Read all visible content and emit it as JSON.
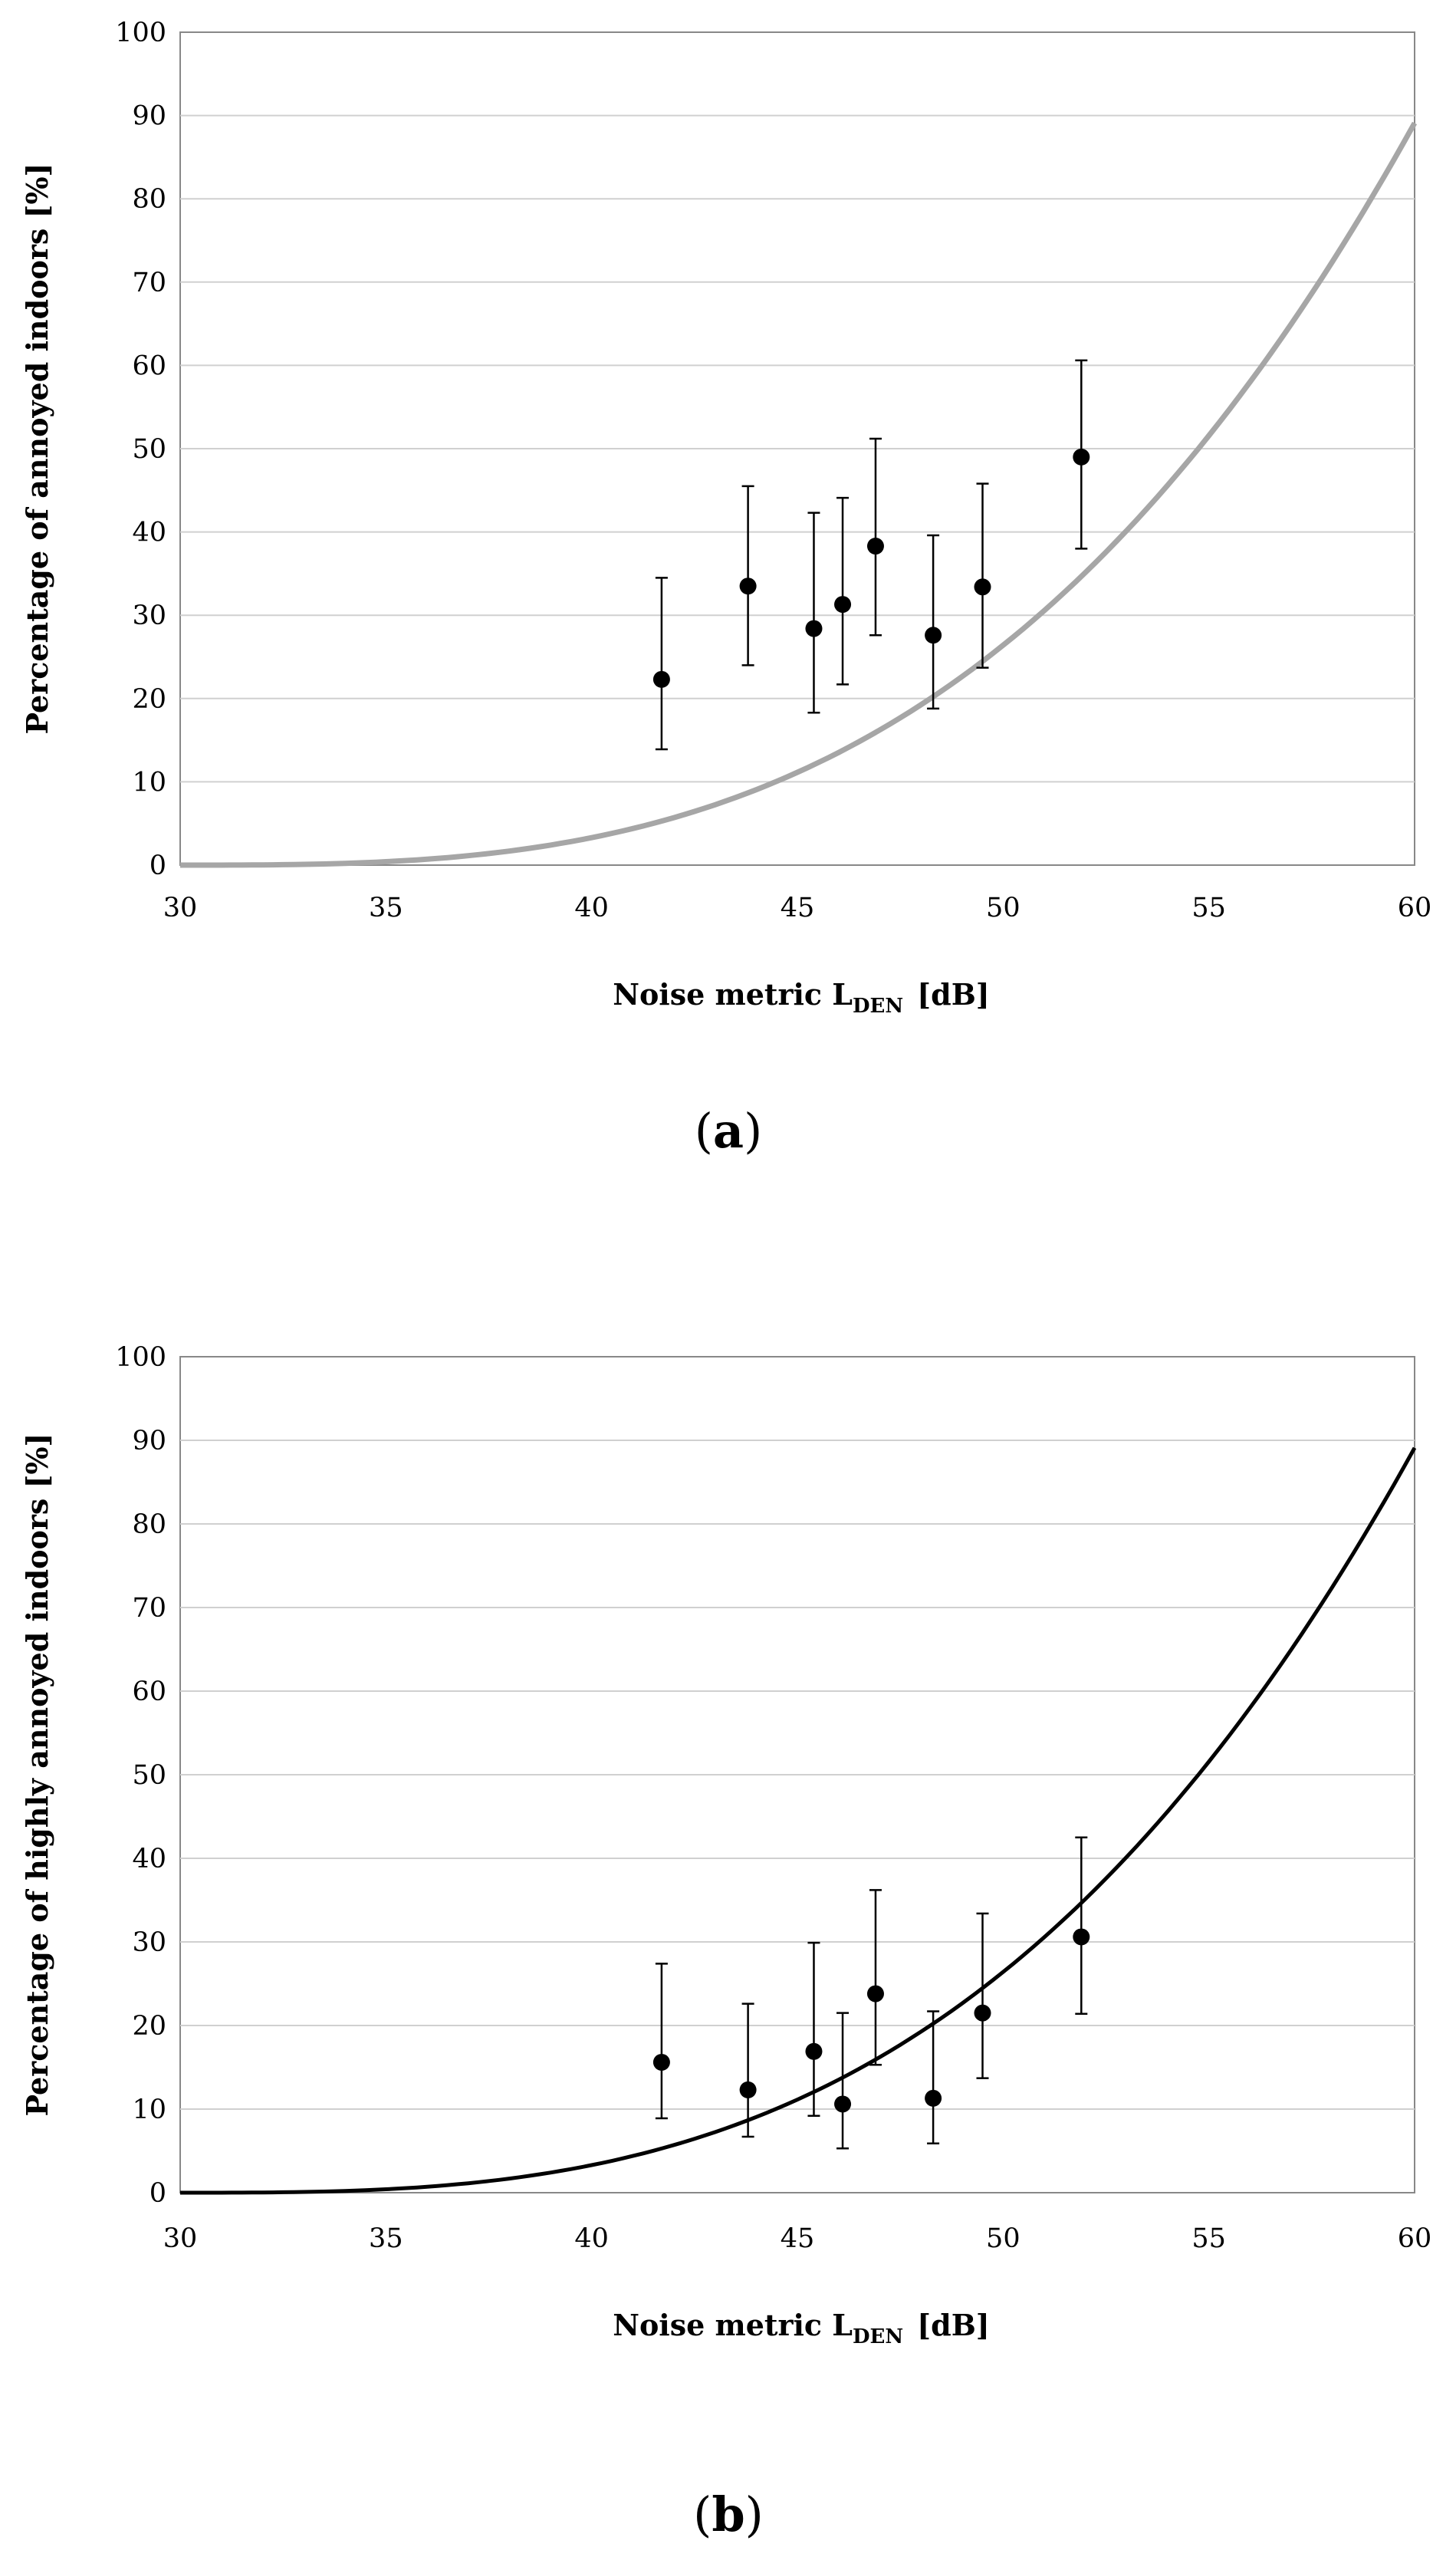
{
  "chart_data": [
    {
      "type": "scatter",
      "panel_label": "a",
      "caption_open": "(",
      "caption_close": ")",
      "xlabel": "Noise metric L",
      "xlabel_subscript": "DEN",
      "xlabel_unit": "[dB]",
      "ylabel": "Percentage of annoyed indoors [%]",
      "xlim": [
        30,
        60
      ],
      "ylim": [
        0,
        100
      ],
      "xticks": [
        30,
        35,
        40,
        45,
        50,
        55,
        60
      ],
      "yticks": [
        0,
        10,
        20,
        30,
        40,
        50,
        60,
        70,
        80,
        90,
        100
      ],
      "grid": "horizontal",
      "curve_color": "#a6a6a6",
      "curve": {
        "type": "power",
        "x0": 30,
        "coef": 0.0033,
        "exponent": 3
      },
      "points": [
        {
          "x": 41.7,
          "y": 22.3,
          "y_low": 13.9,
          "y_high": 34.5
        },
        {
          "x": 43.8,
          "y": 33.5,
          "y_low": 24.0,
          "y_high": 45.5
        },
        {
          "x": 45.4,
          "y": 28.4,
          "y_low": 18.3,
          "y_high": 42.3
        },
        {
          "x": 46.1,
          "y": 31.3,
          "y_low": 21.7,
          "y_high": 44.1
        },
        {
          "x": 46.9,
          "y": 38.3,
          "y_low": 27.6,
          "y_high": 51.2
        },
        {
          "x": 48.3,
          "y": 27.6,
          "y_low": 18.8,
          "y_high": 39.6
        },
        {
          "x": 49.5,
          "y": 33.4,
          "y_low": 23.7,
          "y_high": 45.8
        },
        {
          "x": 51.9,
          "y": 49.0,
          "y_low": 38.0,
          "y_high": 60.6
        }
      ]
    },
    {
      "type": "scatter",
      "panel_label": "b",
      "caption_open": "(",
      "caption_close": ")",
      "xlabel": "Noise metric L",
      "xlabel_subscript": "DEN",
      "xlabel_unit": "[dB]",
      "ylabel": "Percentage of highly annoyed indoors [%]",
      "xlim": [
        30,
        60
      ],
      "ylim": [
        0,
        100
      ],
      "xticks": [
        30,
        35,
        40,
        45,
        50,
        55,
        60
      ],
      "yticks": [
        0,
        10,
        20,
        30,
        40,
        50,
        60,
        70,
        80,
        90,
        100
      ],
      "grid": "horizontal",
      "curve_color": "#000000",
      "curve": {
        "type": "power",
        "x0": 30,
        "coef": 0.0033,
        "exponent": 3
      },
      "points": [
        {
          "x": 41.7,
          "y": 15.6,
          "y_low": 8.9,
          "y_high": 27.4
        },
        {
          "x": 43.8,
          "y": 12.3,
          "y_low": 6.7,
          "y_high": 22.6
        },
        {
          "x": 45.4,
          "y": 16.9,
          "y_low": 9.2,
          "y_high": 29.9
        },
        {
          "x": 46.1,
          "y": 10.6,
          "y_low": 5.3,
          "y_high": 21.5
        },
        {
          "x": 46.9,
          "y": 23.8,
          "y_low": 15.3,
          "y_high": 36.2
        },
        {
          "x": 48.3,
          "y": 11.3,
          "y_low": 5.9,
          "y_high": 21.7
        },
        {
          "x": 49.5,
          "y": 21.5,
          "y_low": 13.7,
          "y_high": 33.4
        },
        {
          "x": 51.9,
          "y": 30.6,
          "y_low": 21.4,
          "y_high": 42.5
        }
      ]
    }
  ]
}
